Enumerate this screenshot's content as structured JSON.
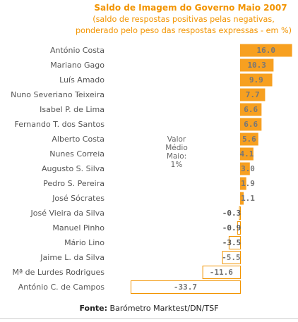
{
  "chart_data": {
    "type": "bar",
    "title": "Saldo de Imagem do Governo Maio 2007",
    "subtitle_lines": [
      "(saldo de respostas positivas pelas negativas,",
      "ponderado pelo peso das respostas expressas - em %)"
    ],
    "categories": [
      "António Costa",
      "Mariano Gago",
      "Luís Amado",
      "Nuno Severiano Teixeira",
      "Isabel P. de Lima",
      "Fernando T. dos Santos",
      "Alberto Costa",
      "Nunes Correia",
      "Augusto S. Silva",
      "Pedro S. Pereira",
      "José Sócrates",
      "José Vieira da Silva",
      "Manuel Pinho",
      "Mário Lino",
      "Jaime L. da Silva",
      "Mª de Lurdes Rodrigues",
      "António C. de Campos"
    ],
    "values": [
      16.0,
      10.3,
      9.9,
      7.7,
      6.6,
      6.6,
      5.6,
      4.1,
      3.0,
      1.9,
      1.1,
      -0.3,
      -0.9,
      -3.5,
      -5.5,
      -11.6,
      -33.7
    ],
    "value_labels": [
      "16.0",
      "10.3",
      "9.9",
      "7.7",
      "6.6",
      "6.6",
      "5.6",
      "4.1",
      "3.0",
      "1.9",
      "1.1",
      "-0.3",
      "-0.9",
      "-3.5",
      "-5.5",
      "-11.6",
      "-33.7"
    ],
    "orientation": "horizontal",
    "average_note": [
      "Valor",
      "Médio",
      "Maio:",
      "1%"
    ],
    "colors": {
      "positive_fill": "#f7a020",
      "negative_fill": "#ffffff",
      "negative_stroke": "#f29400",
      "title": "#f29400",
      "label_text": "#555555",
      "value_text": "#777777"
    }
  },
  "source": {
    "label": "Fonte:",
    "text": " Barómetro Marktest/DN/TSF"
  }
}
